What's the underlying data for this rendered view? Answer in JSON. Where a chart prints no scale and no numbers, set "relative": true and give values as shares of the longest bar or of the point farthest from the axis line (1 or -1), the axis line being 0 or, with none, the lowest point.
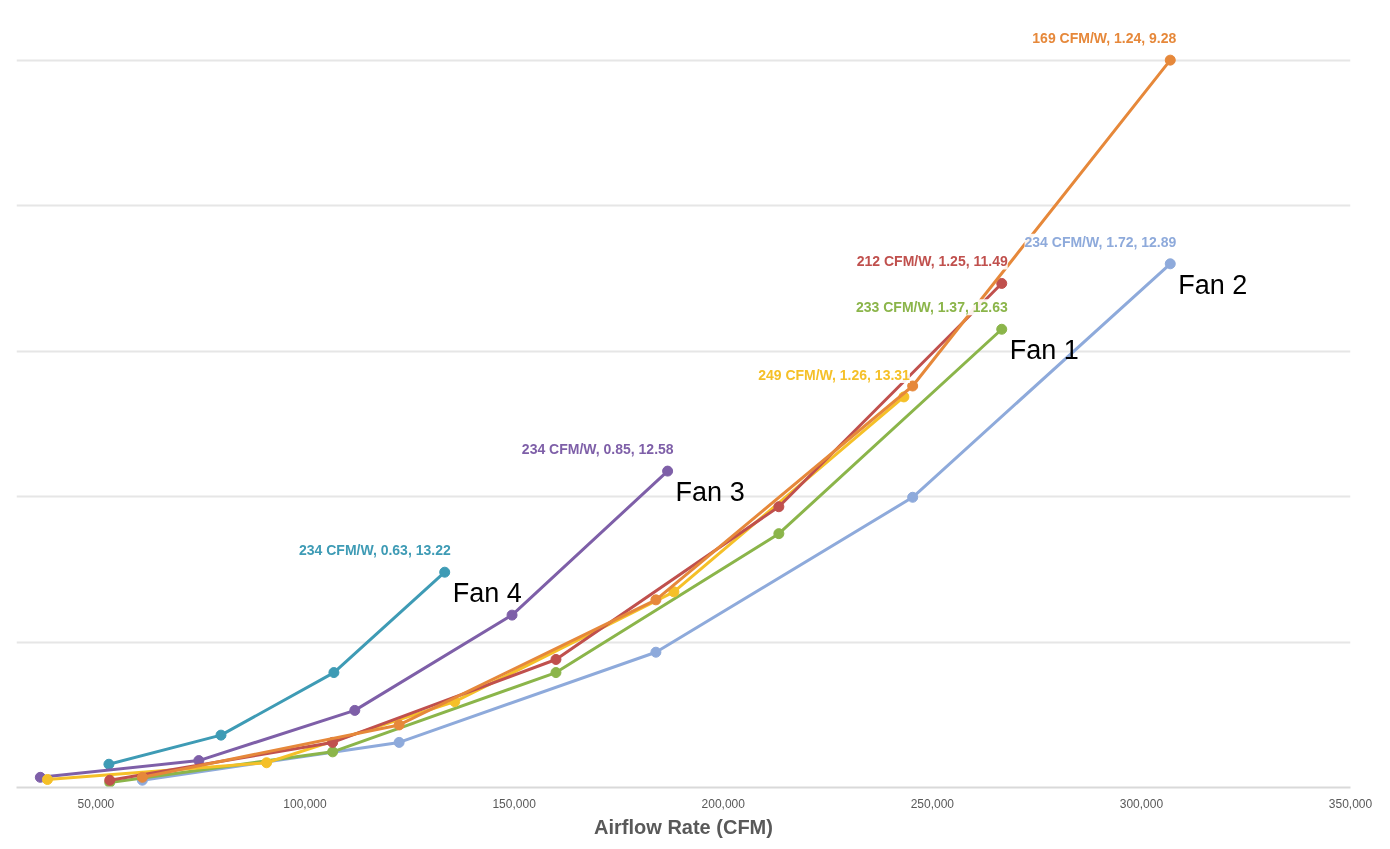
{
  "chart_data": {
    "type": "line",
    "relative": true,
    "xlabel": "Airflow Rate (CFM)",
    "xlim": [
      31000,
      350000
    ],
    "xticks": [
      {
        "value": 50000,
        "label": "50,000"
      },
      {
        "value": 100000,
        "label": "100,000"
      },
      {
        "value": 150000,
        "label": "150,000"
      },
      {
        "value": 200000,
        "label": "200,000"
      },
      {
        "value": 250000,
        "label": "250,000"
      },
      {
        "value": 300000,
        "label": "300,000"
      },
      {
        "value": 350000,
        "label": "350,000"
      }
    ],
    "grid": "y",
    "marker": "circle",
    "line_style": "solid",
    "tick_labels": "x",
    "series": [
      {
        "color": "#e6883a",
        "x": [
          61100,
          122500,
          183900,
          245300,
          306900
        ],
        "values": [
          0.014,
          0.086,
          0.258,
          0.552,
          1
        ]
      },
      {
        "color": "#c0504d",
        "x": [
          53300,
          106600,
          160000,
          213300,
          266600
        ],
        "values": [
          0.01,
          0.062,
          0.176,
          0.386,
          0.693
        ]
      },
      {
        "color": "#f5c028",
        "x": [
          38400,
          90800,
          135800,
          188200,
          243200
        ],
        "values": [
          0.011,
          0.034,
          0.118,
          0.269,
          0.537
        ]
      },
      {
        "name": "Fan 1",
        "color": "#8bb54a",
        "x": [
          53300,
          106600,
          160000,
          213300,
          266600
        ],
        "values": [
          0.007,
          0.049,
          0.158,
          0.349,
          0.63
        ]
      },
      {
        "name": "Fan 2",
        "color": "#8eaadb",
        "x": [
          61100,
          122500,
          183900,
          245300,
          306900
        ],
        "values": [
          0.01,
          0.062,
          0.186,
          0.399,
          0.72
        ]
      },
      {
        "name": "Fan 3",
        "color": "#7e5fa8",
        "x": [
          36700,
          74600,
          111900,
          149500,
          186700
        ],
        "values": [
          0.014,
          0.037,
          0.106,
          0.237,
          0.435
        ]
      },
      {
        "name": "Fan 4",
        "color": "#3e9bb5",
        "x": [
          53100,
          79900,
          106900,
          133400
        ],
        "values": [
          0.032,
          0.072,
          0.158,
          0.296
        ]
      }
    ],
    "annotations": [
      {
        "text": "169 CFM/W, 1.24, 9.28",
        "x": 306900,
        "y": 1
      },
      {
        "text": "212 CFM/W, 1.25, 11.49",
        "x": 266600,
        "y": 0.693
      },
      {
        "text": "249 CFM/W, 1.26, 13.31",
        "x": 243200,
        "y": 0.537
      },
      {
        "text": "233 CFM/W, 1.37, 12.63",
        "x": 266600,
        "y": 0.63
      },
      {
        "text": "234 CFM/W, 1.72, 12.89",
        "x": 306900,
        "y": 0.72
      },
      {
        "text": "234 CFM/W, 0.85, 12.58",
        "x": 186700,
        "y": 0.435
      },
      {
        "text": "234 CFM/W, 0.63, 13.22",
        "x": 133400,
        "y": 0.296
      }
    ]
  }
}
